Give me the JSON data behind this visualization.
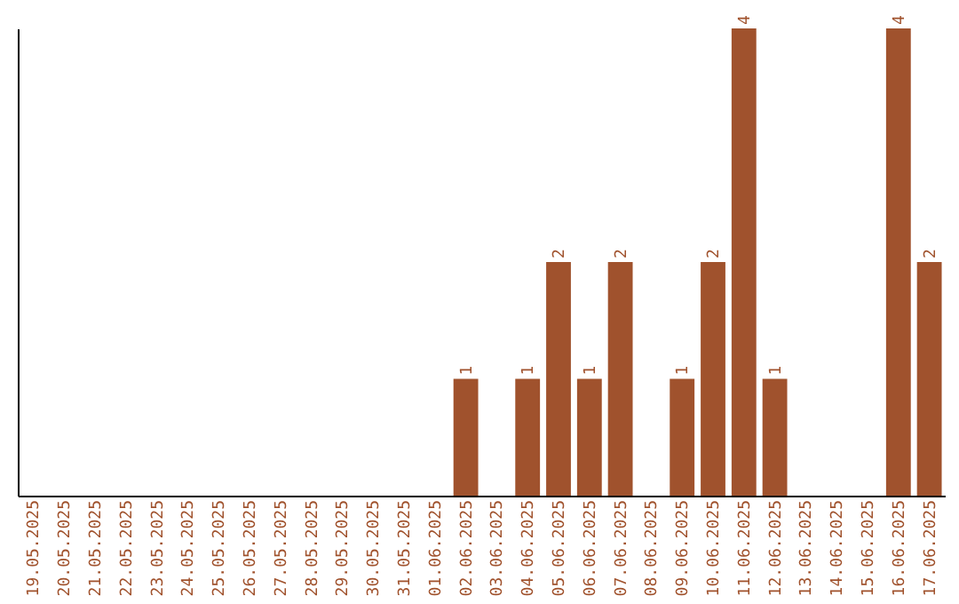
{
  "chart_data": {
    "type": "bar",
    "categories": [
      "19.05.2025",
      "20.05.2025",
      "21.05.2025",
      "22.05.2025",
      "23.05.2025",
      "24.05.2025",
      "25.05.2025",
      "26.05.2025",
      "27.05.2025",
      "28.05.2025",
      "29.05.2025",
      "30.05.2025",
      "31.05.2025",
      "01.06.2025",
      "02.06.2025",
      "03.06.2025",
      "04.06.2025",
      "05.06.2025",
      "06.06.2025",
      "07.06.2025",
      "08.06.2025",
      "09.06.2025",
      "10.06.2025",
      "11.06.2025",
      "12.06.2025",
      "13.06.2025",
      "14.06.2025",
      "15.06.2025",
      "16.06.2025",
      "17.06.2025"
    ],
    "values": [
      null,
      null,
      null,
      null,
      null,
      null,
      null,
      null,
      null,
      null,
      null,
      null,
      null,
      null,
      1,
      null,
      1,
      2,
      1,
      2,
      null,
      1,
      2,
      4,
      1,
      null,
      null,
      null,
      4,
      2
    ],
    "value_labels": [
      null,
      null,
      null,
      null,
      null,
      null,
      null,
      null,
      null,
      null,
      null,
      null,
      null,
      null,
      "1",
      null,
      "1",
      "2",
      "1",
      "2",
      null,
      "1",
      "2",
      "4",
      "1",
      null,
      null,
      null,
      "4",
      "2"
    ],
    "color": "#a0522d",
    "ylim": [
      0,
      4
    ],
    "tick_labels": "x",
    "grid": false
  }
}
